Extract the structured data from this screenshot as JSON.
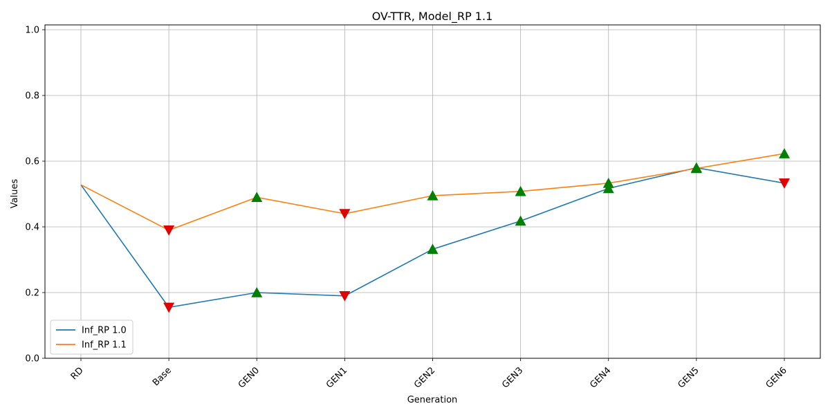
{
  "chart_data": {
    "type": "line",
    "title": "OV-TTR, Model_RP 1.1",
    "xlabel": "Generation",
    "ylabel": "Values",
    "categories": [
      "RD",
      "Base",
      "GEN0",
      "GEN1",
      "GEN2",
      "GEN3",
      "GEN4",
      "GEN5",
      "GEN6"
    ],
    "ylim": [
      0.0,
      1.0
    ],
    "yticks": [
      "0.0",
      "0.2",
      "0.4",
      "0.6",
      "0.8",
      "1.0"
    ],
    "grid": true,
    "legend_position": "lower-left",
    "series": [
      {
        "name": "Inf_RP 1.0",
        "color": "#1f77b4",
        "values": [
          0.528,
          0.155,
          0.2,
          0.19,
          0.332,
          0.418,
          0.517,
          0.58,
          0.533
        ],
        "markers": [
          null,
          "down",
          "up",
          "down",
          "up",
          "up",
          "up",
          "up",
          "down"
        ]
      },
      {
        "name": "Inf_RP 1.1",
        "color": "#ff7f0e",
        "values": [
          0.528,
          0.39,
          0.49,
          0.44,
          0.495,
          0.508,
          0.533,
          0.578,
          0.623
        ],
        "markers": [
          null,
          "down",
          "up",
          "down",
          "up",
          "up",
          "up",
          "up",
          "up"
        ]
      }
    ],
    "marker_colors": {
      "up": "#008000",
      "down": "#e00000"
    }
  }
}
